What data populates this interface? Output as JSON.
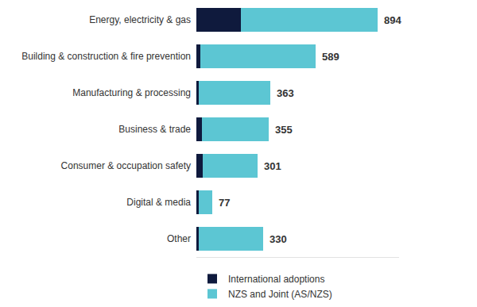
{
  "chart_data": {
    "type": "bar",
    "orientation": "horizontal",
    "stacked": true,
    "categories": [
      "Energy, electricity & gas",
      "Building & construction & fire prevention",
      "Manufacturing & processing",
      "Business & trade",
      "Consumer & occupation safety",
      "Digital & media",
      "Other"
    ],
    "series": [
      {
        "name": "International adoptions",
        "color": "#0f1a3d",
        "values": [
          220,
          20,
          12,
          27,
          31,
          12,
          12
        ]
      },
      {
        "name": "NZS and Joint (AS/NZS)",
        "color": "#5cc6d3",
        "values": [
          674,
          569,
          351,
          328,
          270,
          65,
          318
        ]
      }
    ],
    "totals": [
      894,
      589,
      363,
      355,
      301,
      77,
      330
    ],
    "xlim": [
      0,
      1000
    ],
    "tick_labels": "y",
    "grid": false,
    "legend": "bottom"
  }
}
